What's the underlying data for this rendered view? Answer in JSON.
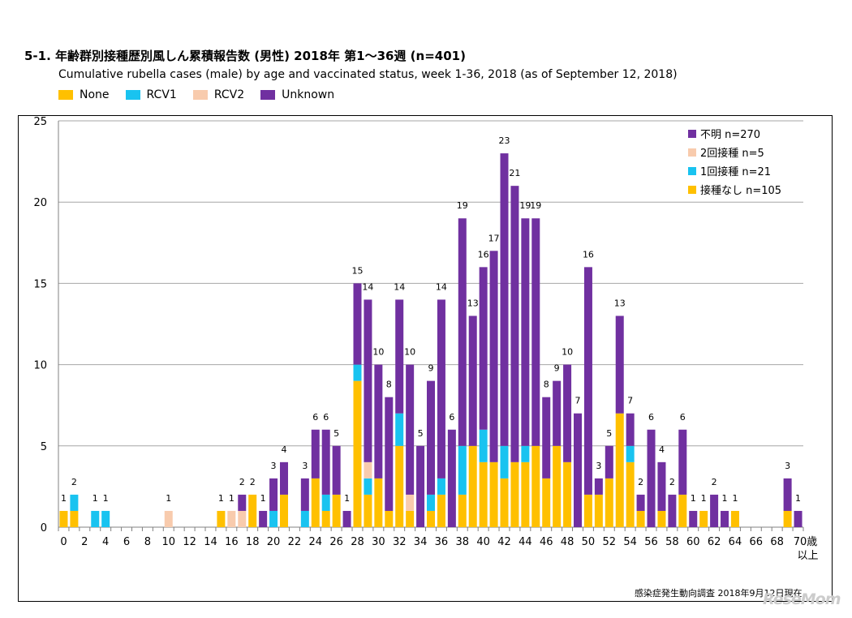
{
  "title": "5-1. 年齢群別接種歴別風しん累積報告数 (男性)  2018年 第1～36週 (n=401)",
  "subtitle": "Cumulative rubella cases (male) by age and vaccinated status, week 1-36, 2018 (as of September 12, 2018)",
  "top_legend": [
    {
      "label": "None",
      "color": "#FFC000"
    },
    {
      "label": "RCV1",
      "color": "#19C3F0"
    },
    {
      "label": "RCV2",
      "color": "#F8CBAD"
    },
    {
      "label": "Unknown",
      "color": "#7030A0"
    }
  ],
  "source": "感染症発生動向調査 2018年9月12日現在",
  "logo_text": "ReseMom",
  "chart_data": {
    "type": "bar",
    "stacked": true,
    "ylim": [
      0,
      25
    ],
    "yticks": [
      0,
      5,
      10,
      15,
      20,
      25
    ],
    "grid": true,
    "legend_placement": "top-right",
    "x": [
      0,
      1,
      2,
      3,
      4,
      5,
      6,
      7,
      8,
      9,
      10,
      11,
      12,
      13,
      14,
      15,
      16,
      17,
      18,
      19,
      20,
      21,
      22,
      23,
      24,
      25,
      26,
      27,
      28,
      29,
      30,
      31,
      32,
      33,
      34,
      35,
      36,
      37,
      38,
      39,
      40,
      41,
      42,
      43,
      44,
      45,
      46,
      47,
      48,
      49,
      50,
      51,
      52,
      53,
      54,
      55,
      56,
      57,
      58,
      59,
      60,
      61,
      62,
      63,
      64,
      65,
      66,
      67,
      68,
      69,
      70
    ],
    "xtick_labels": [
      "0",
      "2",
      "4",
      "6",
      "8",
      "10",
      "12",
      "14",
      "16",
      "18",
      "20",
      "22",
      "24",
      "26",
      "28",
      "30",
      "32",
      "34",
      "36",
      "38",
      "40",
      "42",
      "44",
      "46",
      "48",
      "50",
      "52",
      "54",
      "56",
      "58",
      "60",
      "62",
      "64",
      "66",
      "68"
    ],
    "last_xtick_label": [
      "70歳",
      "以上"
    ],
    "series": [
      {
        "name": "接種なし n=105",
        "color": "#FFC000",
        "values": [
          1,
          1,
          0,
          0,
          0,
          0,
          0,
          0,
          0,
          0,
          0,
          0,
          0,
          0,
          0,
          1,
          0,
          0,
          2,
          0,
          0,
          2,
          0,
          0,
          3,
          1,
          2,
          0,
          9,
          2,
          3,
          1,
          5,
          1,
          0,
          1,
          2,
          0,
          2,
          5,
          4,
          4,
          3,
          4,
          4,
          5,
          3,
          5,
          4,
          0,
          2,
          2,
          3,
          7,
          4,
          1,
          0,
          1,
          0,
          2,
          0,
          1,
          0,
          0,
          1,
          0,
          0,
          0,
          0,
          1,
          0
        ]
      },
      {
        "name": "1回接種 n=21",
        "color": "#19C3F0",
        "values": [
          0,
          1,
          0,
          1,
          1,
          0,
          0,
          0,
          0,
          0,
          0,
          0,
          0,
          0,
          0,
          0,
          0,
          0,
          0,
          0,
          1,
          0,
          0,
          1,
          0,
          1,
          0,
          0,
          1,
          1,
          0,
          0,
          2,
          0,
          0,
          1,
          1,
          0,
          3,
          0,
          2,
          0,
          2,
          0,
          1,
          0,
          0,
          0,
          0,
          0,
          0,
          0,
          0,
          0,
          1,
          0,
          0,
          0,
          0,
          0,
          0,
          0,
          0,
          0,
          0,
          0,
          0,
          0,
          0,
          0,
          0
        ]
      },
      {
        "name": "2回接種 n=5",
        "color": "#F8CBAD",
        "values": [
          0,
          0,
          0,
          0,
          0,
          0,
          0,
          0,
          0,
          0,
          1,
          0,
          0,
          0,
          0,
          0,
          1,
          1,
          0,
          0,
          0,
          0,
          0,
          0,
          0,
          0,
          0,
          0,
          0,
          1,
          0,
          0,
          0,
          1,
          0,
          0,
          0,
          0,
          0,
          0,
          0,
          0,
          0,
          0,
          0,
          0,
          0,
          0,
          0,
          0,
          0,
          0,
          0,
          0,
          0,
          0,
          0,
          0,
          0,
          0,
          0,
          0,
          0,
          0,
          0,
          0,
          0,
          0,
          0,
          0,
          0
        ]
      },
      {
        "name": "不明 n=270",
        "color": "#7030A0",
        "values": [
          0,
          0,
          0,
          0,
          0,
          0,
          0,
          0,
          0,
          0,
          0,
          0,
          0,
          0,
          0,
          0,
          0,
          1,
          0,
          1,
          2,
          2,
          0,
          2,
          3,
          4,
          3,
          1,
          5,
          10,
          7,
          7,
          7,
          8,
          5,
          7,
          11,
          6,
          14,
          8,
          10,
          13,
          18,
          17,
          14,
          14,
          5,
          4,
          6,
          7,
          14,
          1,
          2,
          6,
          2,
          1,
          6,
          3,
          2,
          4,
          1,
          0,
          2,
          1,
          0,
          0,
          0,
          0,
          0,
          2,
          1
        ]
      }
    ],
    "legend_order": [
      "不明 n=270",
      "2回接種 n=5",
      "1回接種 n=21",
      "接種なし n=105"
    ]
  }
}
